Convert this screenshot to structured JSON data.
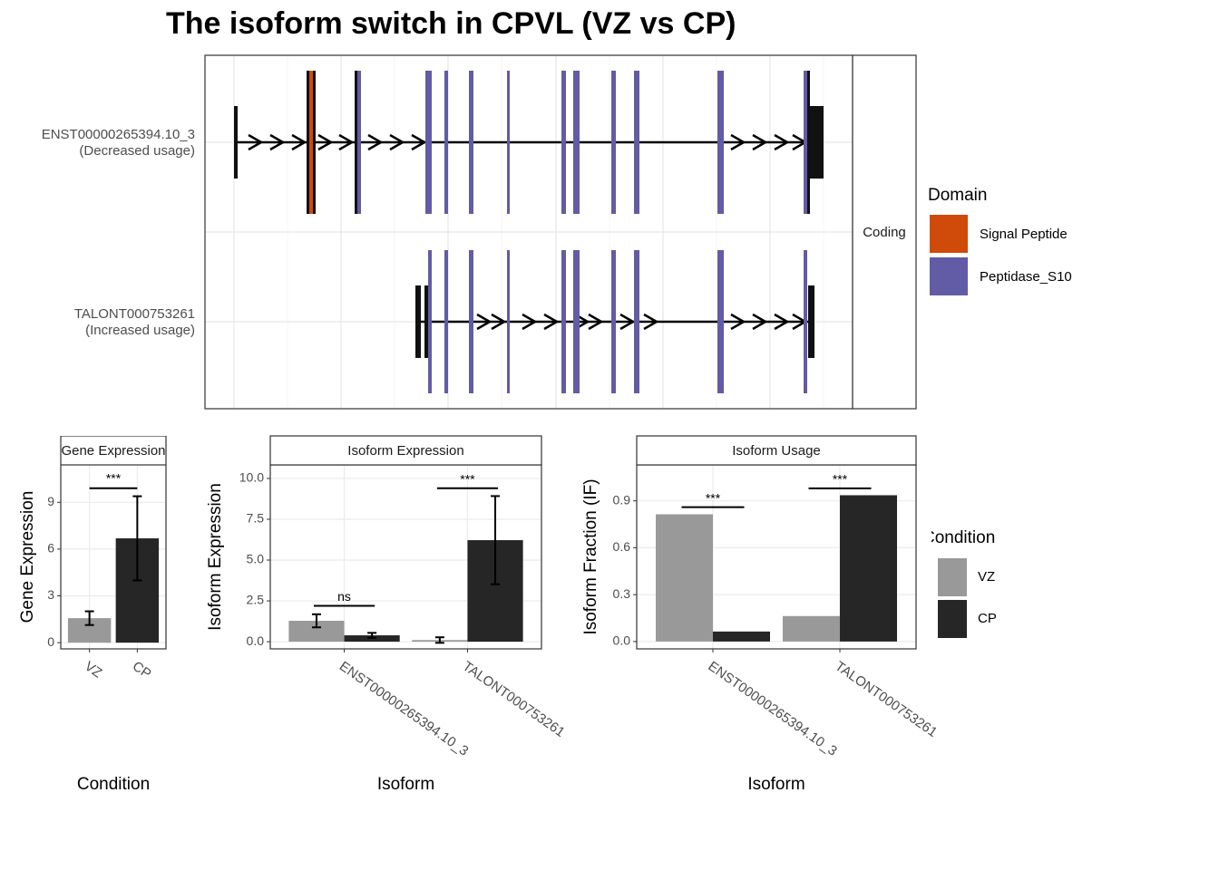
{
  "title": "The isoform switch in CPVL (VZ vs CP)",
  "chart_data": [
    {
      "type": "structure",
      "transcripts": [
        {
          "name": "ENST00000265394.10_3",
          "usage": "(Decreased usage)"
        },
        {
          "name": "TALONT000753261",
          "usage": "(Increased usage)"
        }
      ],
      "facet": "Coding",
      "legend_title": "Domain",
      "domains": [
        {
          "name": "Signal Peptide",
          "color": "#D04A0A"
        },
        {
          "name": "Peptidase_S10",
          "color": "#625BA6"
        }
      ]
    },
    {
      "type": "bar",
      "strip": "Gene Expression",
      "xlabel": "Condition",
      "ylabel": "Gene Expression",
      "categories": [
        "VZ",
        "CP"
      ],
      "colors": [
        "#999999",
        "#262626"
      ],
      "values": [
        1.57,
        6.69
      ],
      "errors": [
        0.44,
        2.7
      ],
      "ylim": [
        -0.4,
        11.4
      ],
      "yticks": [
        0,
        3,
        6,
        9
      ],
      "grid": true,
      "brackets": [
        {
          "label": "***",
          "y": 9.9
        }
      ]
    },
    {
      "type": "bar",
      "strip": "Isoform Expression",
      "xlabel": "Isoform",
      "ylabel": "Isoform Expression",
      "categories": [
        "ENST00000265394.10_3",
        "TALONT000753261"
      ],
      "series": [
        {
          "name": "VZ",
          "color": "#999999",
          "values": [
            1.28,
            0.1
          ],
          "errors": [
            0.4,
            0.17
          ]
        },
        {
          "name": "CP",
          "color": "#262626",
          "values": [
            0.39,
            6.22
          ],
          "errors": [
            0.15,
            2.7
          ]
        }
      ],
      "ylim": [
        -0.44,
        10.83
      ],
      "yticks": [
        {
          "value": 0,
          "label": "0.0"
        },
        2.5,
        {
          "value": 5,
          "label": "5.0"
        },
        7.5,
        {
          "value": 10,
          "label": "10.0"
        }
      ],
      "grid": true,
      "brackets": [
        {
          "label": "ns",
          "y": 2.2
        },
        {
          "label": "***",
          "y": 9.4
        }
      ]
    },
    {
      "type": "bar",
      "strip": "Isoform Usage",
      "xlabel": "Isoform",
      "ylabel": "Isoform Fraction (IF)",
      "categories": [
        "ENST00000265394.10_3",
        "TALONT000753261"
      ],
      "series": [
        {
          "name": "VZ",
          "color": "#999999",
          "values": [
            0.814,
            0.163
          ]
        },
        {
          "name": "CP",
          "color": "#262626",
          "values": [
            0.064,
            0.936
          ]
        }
      ],
      "ylim": [
        -0.047,
        1.13
      ],
      "yticks": [
        {
          "value": 0,
          "label": "0.0"
        },
        0.3,
        0.6,
        0.9
      ],
      "grid": true,
      "brackets": [
        {
          "label": "***",
          "y": 0.86
        },
        {
          "label": "***",
          "y": 0.98
        }
      ],
      "legend_title": "Condition"
    }
  ]
}
